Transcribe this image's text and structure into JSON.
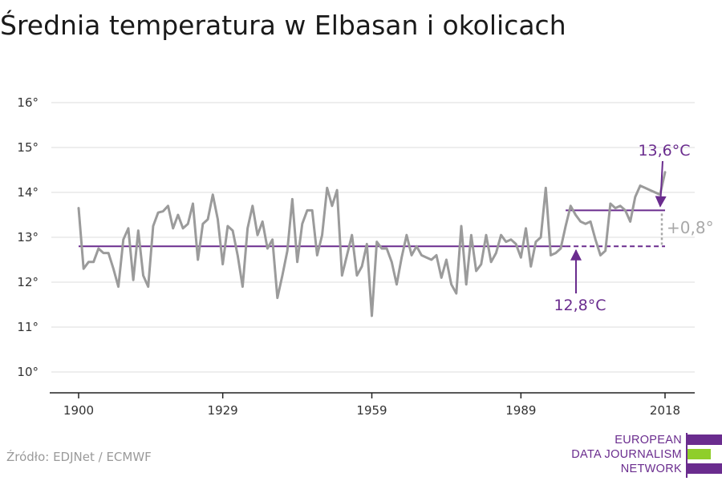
{
  "title": "Średnia temperatura w Elbasan i okolicach",
  "source": "Źródło: EDJNet / ECMWF",
  "logo": {
    "lines": [
      "EUROPEAN",
      "DATA JOURNALISM",
      "NETWORK"
    ]
  },
  "colors": {
    "line": "#9b9b9b",
    "accent": "#6a2c8e",
    "grid": "#dddddd",
    "delta": "#a8a8a8",
    "green": "#8fce2a"
  },
  "chart_data": {
    "type": "line",
    "title": "Średnia temperatura w Elbasan i okolicach",
    "xlabel": "",
    "ylabel": "",
    "x_ticks": [
      1900,
      1929,
      1959,
      1989,
      2018
    ],
    "y_ticks": [
      10,
      11,
      12,
      13,
      14,
      15,
      16
    ],
    "y_tick_labels": [
      "10°",
      "11°",
      "12°",
      "13°",
      "14°",
      "15°",
      "16°"
    ],
    "xlim": [
      1900,
      2018
    ],
    "ylim": [
      9.6,
      16.2
    ],
    "grid": true,
    "series": [
      {
        "x_start": 1900,
        "values": [
          13.65,
          12.3,
          12.45,
          12.45,
          12.75,
          12.65,
          12.65,
          12.3,
          11.9,
          12.95,
          13.2,
          12.05,
          13.15,
          12.15,
          11.9,
          13.25,
          13.55,
          13.58,
          13.7,
          13.2,
          13.5,
          13.2,
          13.3,
          13.75,
          12.5,
          13.3,
          13.4,
          13.95,
          13.4,
          12.4,
          13.25,
          13.15,
          12.6,
          11.9,
          13.2,
          13.7,
          13.05,
          13.35,
          12.75,
          12.95,
          11.65,
          12.15,
          12.7,
          13.85,
          12.45,
          13.3,
          13.6,
          13.6,
          12.6,
          13.05,
          14.1,
          13.7,
          14.05,
          12.15,
          12.6,
          13.05,
          12.15,
          12.35,
          12.85,
          11.25,
          12.9,
          12.75,
          12.75,
          12.45,
          11.95,
          12.55,
          13.05,
          12.6,
          12.8,
          12.6,
          12.55,
          12.5,
          12.6,
          12.1,
          12.5,
          11.95,
          11.75,
          13.25,
          11.95,
          13.05,
          12.25,
          12.4,
          13.05,
          12.45,
          12.65,
          13.05,
          12.9,
          12.95,
          12.85,
          12.55,
          13.2,
          12.35,
          12.9,
          13.0,
          14.1,
          12.6,
          12.65,
          12.75,
          13.25,
          13.7,
          13.5,
          13.35,
          13.3,
          13.35,
          12.95,
          12.6,
          12.7,
          13.75,
          13.65,
          13.7,
          13.6,
          13.35,
          13.9,
          14.15,
          14.1,
          14.05,
          14.0,
          13.95,
          14.45
        ]
      }
    ],
    "annotations": {
      "baseline": {
        "value": 12.8,
        "label": "12,8°C",
        "x_from": 1900,
        "x_to": 2018
      },
      "recent": {
        "value": 13.6,
        "label": "13,6°C",
        "x_from": 1998,
        "x_to": 2018
      },
      "delta": {
        "label": "+0,8°"
      }
    }
  }
}
